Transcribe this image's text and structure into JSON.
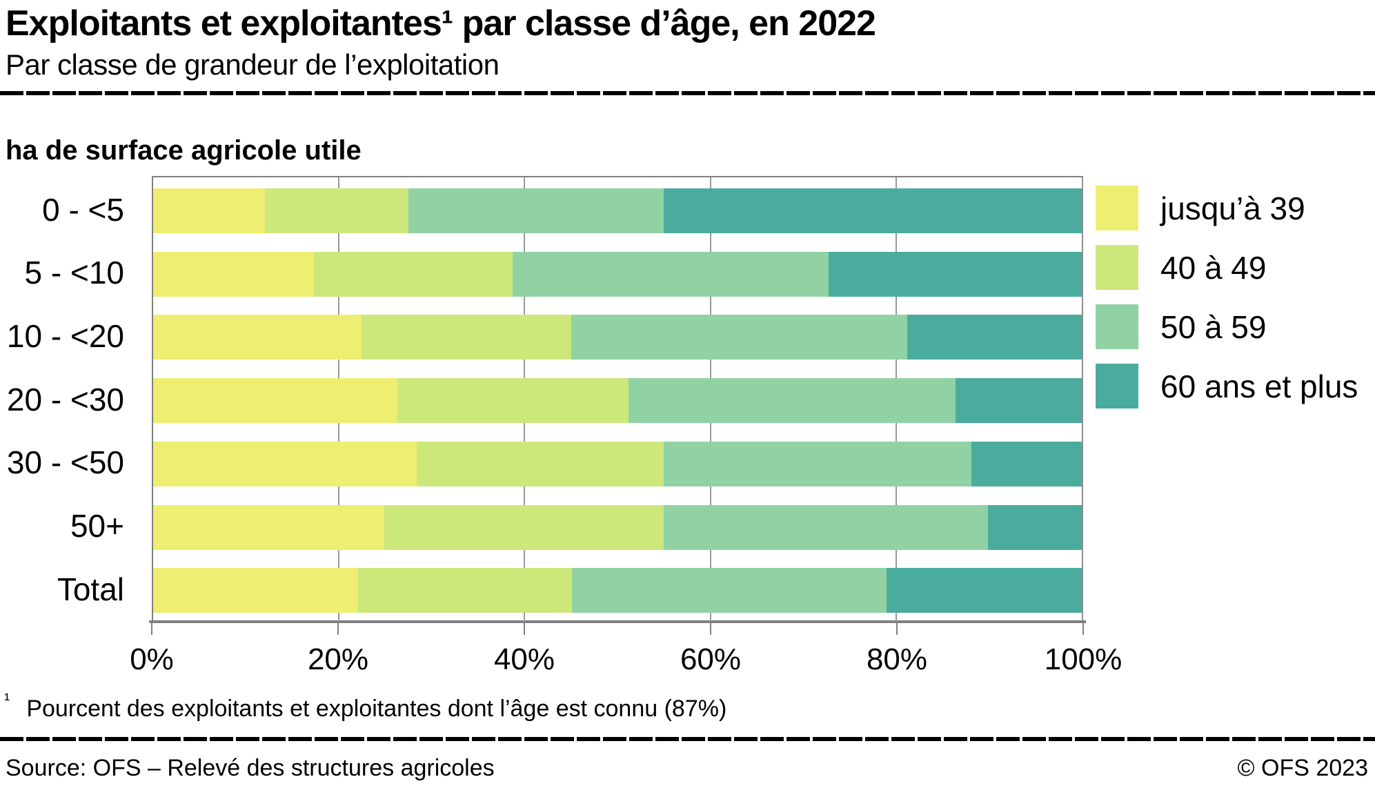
{
  "header": {
    "title": "Exploitants et exploitantes¹ par classe d’âge, en 2022",
    "subtitle": "Par classe de grandeur de l’exploitation"
  },
  "chart_data": {
    "type": "bar",
    "orientation": "horizontal-stacked",
    "title": "Exploitants et exploitantes¹ par classe d’âge, en 2022",
    "subtitle": "Par classe de grandeur de l’exploitation",
    "ylabel": "ha de surface agricole utile",
    "xlabel": "",
    "categories": [
      "0 - <5",
      "5 - <10",
      "10 - <20",
      "20 - <30",
      "30 - <50",
      "50+",
      "Total"
    ],
    "series": [
      {
        "name": "jusqu’à 39",
        "color": "#EDEE72",
        "values": [
          12.0,
          17.3,
          22.4,
          26.3,
          28.4,
          24.9,
          22.1
        ]
      },
      {
        "name": "40 à 49",
        "color": "#CDE87A",
        "values": [
          15.5,
          21.4,
          22.6,
          24.9,
          26.6,
          30.1,
          23.0
        ]
      },
      {
        "name": "50 à 59",
        "color": "#90D2A4",
        "values": [
          27.5,
          34.0,
          36.2,
          35.2,
          33.1,
          34.9,
          33.9
        ]
      },
      {
        "name": "60 ans et plus",
        "color": "#4AAC9C",
        "values": [
          45.0,
          27.3,
          18.8,
          13.6,
          11.9,
          10.1,
          21.0
        ]
      }
    ],
    "xlim": [
      0,
      100
    ],
    "x_tick_labels": [
      "0%",
      "20%",
      "40%",
      "60%",
      "80%",
      "100%"
    ],
    "grid": true,
    "gridline_percents": [
      20,
      40,
      60,
      80
    ],
    "legend_position": "right",
    "gridline_color": "#999999",
    "axis_color": "#7f7f7f"
  },
  "footnote": {
    "marker": "¹",
    "text": "Pourcent des exploitants et exploitantes dont l’âge est connu (87%)"
  },
  "footer": {
    "source": "Source: OFS – Relevé des structures agricoles",
    "copyright": "© OFS 2023"
  }
}
